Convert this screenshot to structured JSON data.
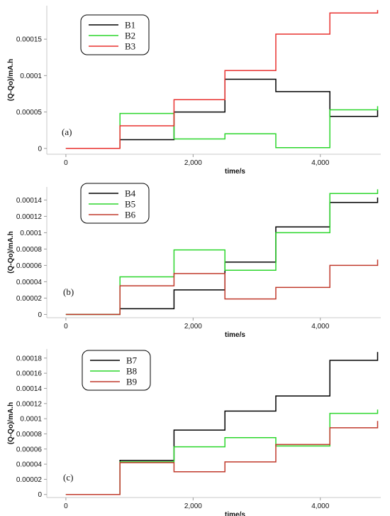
{
  "chart_data": [
    {
      "type": "line",
      "panel_label": "(a)",
      "xlabel": "time/s",
      "ylabel": "(Q-Qo)/mA.h",
      "xlim": [
        -300,
        4950
      ],
      "ylim": [
        -8e-06,
        0.000196
      ],
      "xticks": [
        0,
        2000,
        4000
      ],
      "xtick_labels": [
        "0",
        "2,000",
        "4,000"
      ],
      "yticks": [
        0,
        5e-05,
        0.0001,
        0.00015
      ],
      "ytick_labels": [
        "0",
        "0.00005",
        "0.0001",
        "0.00015"
      ],
      "legend_placement": "top-left",
      "series": [
        {
          "name": "B1",
          "color": "#000000",
          "x": [
            0,
            850,
            850,
            1700,
            1700,
            2500,
            2500,
            3300,
            3300,
            4150,
            4150,
            4900,
            4900
          ],
          "y": [
            0,
            0,
            1.2e-05,
            1.2e-05,
            5e-05,
            5e-05,
            9.5e-05,
            9.5e-05,
            7.8e-05,
            7.8e-05,
            4.4e-05,
            4.4e-05,
            5.3e-05
          ]
        },
        {
          "name": "B2",
          "color": "#2bd62b",
          "x": [
            0,
            850,
            850,
            1700,
            1700,
            2500,
            2500,
            3300,
            3300,
            4150,
            4150,
            4900,
            4900
          ],
          "y": [
            0,
            0,
            4.8e-05,
            4.8e-05,
            1.3e-05,
            1.3e-05,
            2e-05,
            2e-05,
            1e-06,
            1e-06,
            5.3e-05,
            5.3e-05,
            5.8e-05
          ]
        },
        {
          "name": "B3",
          "color": "#e8312f",
          "x": [
            0,
            850,
            850,
            1700,
            1700,
            2500,
            2500,
            3300,
            3300,
            4150,
            4150,
            4900,
            4900
          ],
          "y": [
            0,
            0,
            3.1e-05,
            3.1e-05,
            6.7e-05,
            6.7e-05,
            0.000107,
            0.000107,
            0.000157,
            0.000157,
            0.000186,
            0.000186,
            0.00019
          ]
        }
      ]
    },
    {
      "type": "line",
      "panel_label": "(b)",
      "xlabel": "time/s",
      "ylabel": "(Q-Qo)/mA.h",
      "xlim": [
        -300,
        4950
      ],
      "ylim": [
        -4e-06,
        0.000156
      ],
      "xticks": [
        0,
        2000,
        4000
      ],
      "xtick_labels": [
        "0",
        "2,000",
        "4,000"
      ],
      "yticks": [
        0,
        2e-05,
        4e-05,
        6e-05,
        8e-05,
        0.0001,
        0.00012,
        0.00014
      ],
      "ytick_labels": [
        "0",
        "0.00002",
        "0.00004",
        "0.00006",
        "0.00008",
        "0.0001",
        "0.00012",
        "0.00014"
      ],
      "legend_placement": "top-left",
      "series": [
        {
          "name": "B4",
          "color": "#000000",
          "x": [
            0,
            850,
            850,
            1700,
            1700,
            2500,
            2500,
            3300,
            3300,
            4150,
            4150,
            4900,
            4900
          ],
          "y": [
            0,
            0,
            7e-06,
            7e-06,
            3e-05,
            3e-05,
            6.4e-05,
            6.4e-05,
            0.000107,
            0.000107,
            0.000137,
            0.000137,
            0.000143
          ]
        },
        {
          "name": "B5",
          "color": "#2bd62b",
          "x": [
            0,
            850,
            850,
            1700,
            1700,
            2500,
            2500,
            3300,
            3300,
            4150,
            4150,
            4900,
            4900
          ],
          "y": [
            0,
            0,
            4.6e-05,
            4.6e-05,
            7.9e-05,
            7.9e-05,
            5.4e-05,
            5.4e-05,
            0.0001,
            0.0001,
            0.000148,
            0.000148,
            0.000153
          ]
        },
        {
          "name": "B6",
          "color": "#c0392b",
          "x": [
            0,
            850,
            850,
            1700,
            1700,
            2500,
            2500,
            3300,
            3300,
            4150,
            4150,
            4900,
            4900
          ],
          "y": [
            0,
            0,
            3.5e-05,
            3.5e-05,
            5e-05,
            5e-05,
            1.9e-05,
            1.9e-05,
            3.3e-05,
            3.3e-05,
            6e-05,
            6e-05,
            6.7e-05
          ]
        }
      ]
    },
    {
      "type": "line",
      "panel_label": "(c)",
      "xlabel": "time/s",
      "ylabel": "(Q-Qo)/mA.h",
      "xlim": [
        -300,
        4950
      ],
      "ylim": [
        -4e-06,
        0.000192
      ],
      "xticks": [
        0,
        2000,
        4000
      ],
      "xtick_labels": [
        "0",
        "2,000",
        "4,000"
      ],
      "yticks": [
        0,
        2e-05,
        4e-05,
        6e-05,
        8e-05,
        0.0001,
        0.00012,
        0.00014,
        0.00016,
        0.00018
      ],
      "ytick_labels": [
        "0",
        "0.00002",
        "0.00004",
        "0.00006",
        "0.00008",
        "0.0001",
        "0.00012",
        "0.00014",
        "0.00016",
        "0.00018"
      ],
      "legend_placement": "top-left",
      "series": [
        {
          "name": "B7",
          "color": "#000000",
          "x": [
            0,
            850,
            850,
            1700,
            1700,
            2500,
            2500,
            3300,
            3300,
            4150,
            4150,
            4900,
            4900
          ],
          "y": [
            0,
            0,
            4.5e-05,
            4.5e-05,
            8.5e-05,
            8.5e-05,
            0.00011,
            0.00011,
            0.00013,
            0.00013,
            0.000177,
            0.000177,
            0.000188
          ]
        },
        {
          "name": "B8",
          "color": "#2bd62b",
          "x": [
            0,
            850,
            850,
            1700,
            1700,
            2500,
            2500,
            3300,
            3300,
            4150,
            4150,
            4900,
            4900
          ],
          "y": [
            0,
            0,
            4.3e-05,
            4.3e-05,
            6.3e-05,
            6.3e-05,
            7.5e-05,
            7.5e-05,
            6.4e-05,
            6.4e-05,
            0.000107,
            0.000107,
            0.000112
          ]
        },
        {
          "name": "B9",
          "color": "#c0392b",
          "x": [
            0,
            850,
            850,
            1700,
            1700,
            2500,
            2500,
            3300,
            3300,
            4150,
            4150,
            4900,
            4900
          ],
          "y": [
            0,
            0,
            4.2e-05,
            4.2e-05,
            3e-05,
            3e-05,
            4.3e-05,
            4.3e-05,
            6.6e-05,
            6.6e-05,
            8.8e-05,
            8.8e-05,
            9.7e-05
          ]
        }
      ]
    }
  ]
}
